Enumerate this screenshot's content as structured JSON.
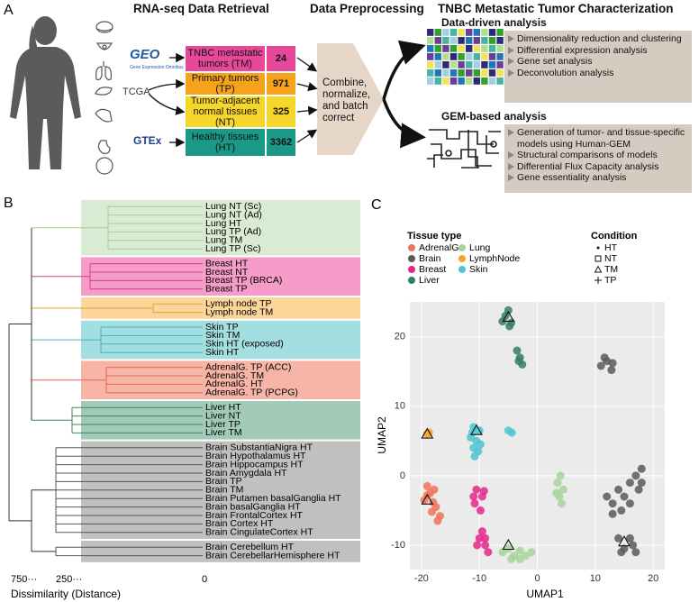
{
  "panel_a": {
    "label": "A",
    "retrieval_title": "RNA-seq Data Retrieval",
    "sources": {
      "geo": "GEO",
      "geo_sub": "Gene Expression Omnibus",
      "tcga": "TCGA",
      "gtex": "GTEx"
    },
    "samples": [
      {
        "label": "TNBC metastatic tumors (TM)",
        "count": "24"
      },
      {
        "label": "Primary tumors (TP)",
        "count": "971"
      },
      {
        "label": "Tumor-adjacent normal tissues (NT)",
        "count": "325"
      },
      {
        "label": "Healthy tissues (HT)",
        "count": "3362"
      }
    ],
    "preprocessing_title": "Data Preprocessing",
    "preprocessing_text": "Combine, normalize, and batch correct",
    "characterization_title": "TNBC Metastatic Tumor Characterization",
    "data_driven": {
      "title": "Data-driven analysis",
      "items": [
        "Dimensionality reduction and clustering",
        "Differential expression analysis",
        "Gene set analysis",
        "Deconvolution analysis"
      ]
    },
    "gem": {
      "title": "GEM-based analysis",
      "items": [
        "Generation of tumor- and tissue-specific models using Human-GEM",
        "Structural comparisons of models",
        "Differential Flux Capacity analysis",
        "Gene essentiality analysis"
      ]
    }
  },
  "panel_b": {
    "label": "B",
    "groups": [
      {
        "color": "#d9ebd3",
        "line": "#9fd08f",
        "leaves": [
          "Lung NT (Sc)",
          "Lung NT (Ad)",
          "Lung HT",
          "Lung TP (Ad)",
          "Lung TM",
          "Lung TP (Sc)"
        ]
      },
      {
        "color": "#f59cc9",
        "line": "#d63b8c",
        "leaves": [
          "Breast HT",
          "Breast NT",
          "Breast TP (BRCA)",
          "Breast TP"
        ]
      },
      {
        "color": "#fcd59b",
        "line": "#e9a23a",
        "leaves": [
          "Lymph node TP",
          "Lymph node TM"
        ]
      },
      {
        "color": "#a3dee1",
        "line": "#3fb7bf",
        "leaves": [
          "Skin TP",
          "Skin TM",
          "Skin HT (exposed)",
          "Skin HT"
        ]
      },
      {
        "color": "#f6b5a6",
        "line": "#e8684d",
        "leaves": [
          "AdrenalG. TP (ACC)",
          "AdrenalG. TM",
          "AdrenalG. HT",
          "AdrenalG. TP (PCPG)"
        ]
      },
      {
        "color": "#a2cbb7",
        "line": "#3c8467",
        "leaves": [
          "Liver HT",
          "Liver NT",
          "Liver TP",
          "Liver TM"
        ]
      },
      {
        "color": "#c0c0c0",
        "line": "#555555",
        "leaves": [
          "Brain SubstantiaNigra HT",
          "Brain Hypothalamus HT",
          "Brain Hippocampus HT",
          "Brain Amygdala HT",
          "Brain TP",
          "Brain TM",
          "Brain Putamen basalGanglia HT",
          "Brain basalGanglia HT",
          "Brain FrontalCortex HT",
          "Brain Cortex HT",
          "Brain CingulateCortex HT"
        ]
      },
      {
        "color": "#c0c0c0",
        "line": "#555555",
        "leaves": [
          "Brain Cerebellum HT",
          "Brain CerebellarHemisphere HT"
        ]
      }
    ],
    "axis_ticks": [
      "750···",
      "250···",
      "0"
    ],
    "axis_label": "Dissimilarity (Distance)"
  },
  "chart_data": {
    "type": "scatter",
    "panel_label": "C",
    "x_label": "UMAP1",
    "y_label": "UMAP2",
    "xlim": [
      -22,
      22
    ],
    "ylim": [
      -13.5,
      25
    ],
    "xticks": [
      -20,
      -10,
      0,
      10,
      20
    ],
    "yticks": [
      -10,
      0,
      10,
      20
    ],
    "grid": true,
    "legend_title": "Tissue type",
    "conditions_title": "Condition",
    "conditions": [
      "HT",
      "NT",
      "TM",
      "TP"
    ],
    "series": [
      {
        "name": "AdrenalG.",
        "color": "#f0735a",
        "x": [
          -19,
          -18.5,
          -19.5,
          -18,
          -17.5,
          -18.2,
          -16.8,
          -17.2,
          -19,
          -17.8
        ],
        "values": [
          -1.5,
          -2.5,
          -3.5,
          -3.8,
          -4.5,
          -5.2,
          -5.8,
          -6.5,
          -2.8,
          -2
        ]
      },
      {
        "name": "Brain",
        "color": "#5a5a5a",
        "x": [
          12,
          11,
          12.8,
          11.6,
          13,
          12,
          13,
          14,
          15,
          16,
          17,
          18,
          17.5,
          14.5,
          13,
          16,
          18,
          14,
          15,
          16.5,
          14.5,
          16,
          17
        ],
        "values": [
          16.5,
          15.8,
          15.2,
          17,
          16.2,
          -3,
          -4,
          -2,
          -3,
          -1,
          0,
          1,
          -2,
          -5,
          -5.5,
          -4,
          -1,
          -9,
          -10.5,
          -10,
          -11,
          -9,
          -11
        ]
      },
      {
        "name": "Breast",
        "color": "#e6268a",
        "x": [
          -10.5,
          -9.5,
          -10.8,
          -9.8,
          -11,
          -9.2,
          -9.5,
          -10,
          -9,
          -8.5,
          -10.4,
          -9
        ],
        "values": [
          -2,
          -3,
          -4,
          -5,
          -3,
          -2.2,
          -8,
          -9,
          -10,
          -11,
          -10,
          -9
        ]
      },
      {
        "name": "Liver",
        "color": "#357e63",
        "x": [
          -5.5,
          -4.5,
          -5,
          -6,
          -4.8,
          -3.5,
          -3,
          -2.6,
          -3.2
        ],
        "values": [
          23,
          22,
          23.8,
          22.2,
          21.5,
          18,
          17,
          16,
          16.5
        ]
      },
      {
        "name": "Lung",
        "color": "#a6d49b",
        "x": [
          4,
          3.5,
          4.5,
          3.8,
          4.2,
          3.3,
          -6,
          -5,
          -4,
          -3,
          -2,
          -1,
          -4.5,
          -3
        ],
        "values": [
          0,
          -1,
          -2,
          -3,
          -4,
          -2.5,
          -11,
          -10.5,
          -11.5,
          -10.8,
          -11.5,
          -11,
          -12,
          -12
        ]
      },
      {
        "name": "LymphNode",
        "color": "#f5a42a",
        "x": [
          -19,
          -18.7
        ],
        "values": [
          6,
          6.2
        ]
      },
      {
        "name": "Skin",
        "color": "#4cc6d0",
        "x": [
          -11,
          -10,
          -11.5,
          -10.5,
          -9.8,
          -11,
          -10.2,
          -10.8,
          -11.2,
          -5,
          -4.4
        ],
        "values": [
          7,
          6.5,
          5.5,
          5,
          4.5,
          4,
          3.5,
          2.8,
          6.2,
          6.5,
          6.2
        ]
      }
    ],
    "tm_markers": {
      "x": [
        -5,
        -10.5,
        -19,
        -19,
        -5,
        15
      ],
      "values": [
        22.8,
        6.5,
        6,
        -3.5,
        -10,
        -9.5
      ]
    }
  }
}
